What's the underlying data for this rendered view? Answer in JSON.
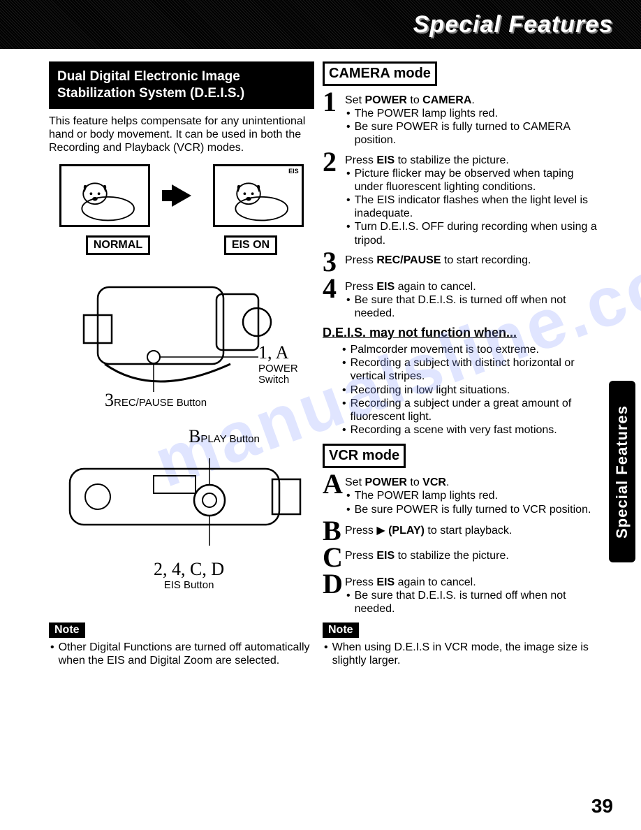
{
  "top_title": "Special Features",
  "side_tab": "Special Features",
  "page_number": "39",
  "watermark": "manualsline.com",
  "feature": {
    "title_line1": "Dual Digital Electronic Image",
    "title_line2": "Stabilization System (D.E.I.S.)",
    "intro": "This feature helps compensate for any unintentional hand or body movement. It can be used in both the Recording and Playback (VCR) modes.",
    "label_normal": "NORMAL",
    "label_eis_on": "EIS ON",
    "eis_badge": "EIS"
  },
  "diagram1": {
    "callout_1a": "1, A",
    "callout_1a_sub1": "POWER",
    "callout_1a_sub2": "Switch",
    "callout_3": "3",
    "callout_3_label": "REC/PAUSE Button"
  },
  "diagram2": {
    "callout_b": "B",
    "callout_b_label": "PLAY Button",
    "callout_24cd": "2, 4, C, D",
    "callout_24cd_label": "EIS Button"
  },
  "left_note": {
    "badge": "Note",
    "bullet": "Other Digital Functions are turned off automatically when the EIS and Digital Zoom are selected."
  },
  "camera_mode": {
    "heading": "CAMERA mode",
    "steps": [
      {
        "num": "1",
        "title_a": "Set ",
        "title_b": "POWER",
        "title_c": " to ",
        "title_d": "CAMERA",
        "title_e": ".",
        "bullets": [
          "The POWER lamp lights red.",
          "Be sure POWER is fully turned to CAMERA position."
        ]
      },
      {
        "num": "2",
        "title_a": "Press ",
        "title_b": "EIS",
        "title_c": " to stabilize the picture.",
        "bullets": [
          "Picture flicker may be observed when taping under fluorescent lighting conditions.",
          "The EIS indicator flashes when the light level is inadequate.",
          "Turn D.E.I.S. OFF during recording when using a tripod."
        ]
      },
      {
        "num": "3",
        "title_a": "Press ",
        "title_b": "REC/PAUSE",
        "title_c": " to start recording."
      },
      {
        "num": "4",
        "title_a": "Press ",
        "title_b": "EIS",
        "title_c": " again to cancel.",
        "bullets": [
          "Be sure that D.E.I.S. is turned off when not needed."
        ]
      }
    ],
    "notwork_heading": "D.E.I.S. may not function when...",
    "notwork": [
      "Palmcorder movement is too extreme.",
      "Recording a subject with distinct horizontal or vertical stripes.",
      "Recording in low light situations.",
      "Recording a subject under a great amount of fluorescent light.",
      "Recording a scene with very fast motions."
    ]
  },
  "vcr_mode": {
    "heading": "VCR mode",
    "steps": [
      {
        "num": "A",
        "title_a": "Set ",
        "title_b": "POWER",
        "title_c": " to ",
        "title_d": "VCR",
        "title_e": ".",
        "bullets": [
          "The POWER lamp lights red.",
          "Be sure POWER is fully turned to VCR position."
        ]
      },
      {
        "num": "B",
        "title_a": "Press ▶ ",
        "title_b": "(PLAY)",
        "title_c": " to start playback."
      },
      {
        "num": "C",
        "title_a": "Press ",
        "title_b": "EIS",
        "title_c": " to stabilize the picture."
      },
      {
        "num": "D",
        "title_a": "Press ",
        "title_b": "EIS",
        "title_c": " again to cancel.",
        "bullets": [
          "Be sure that D.E.I.S. is turned off when not needed."
        ]
      }
    ]
  },
  "right_note": {
    "badge": "Note",
    "bullet": "When using D.E.I.S in VCR mode, the image size is slightly larger."
  }
}
